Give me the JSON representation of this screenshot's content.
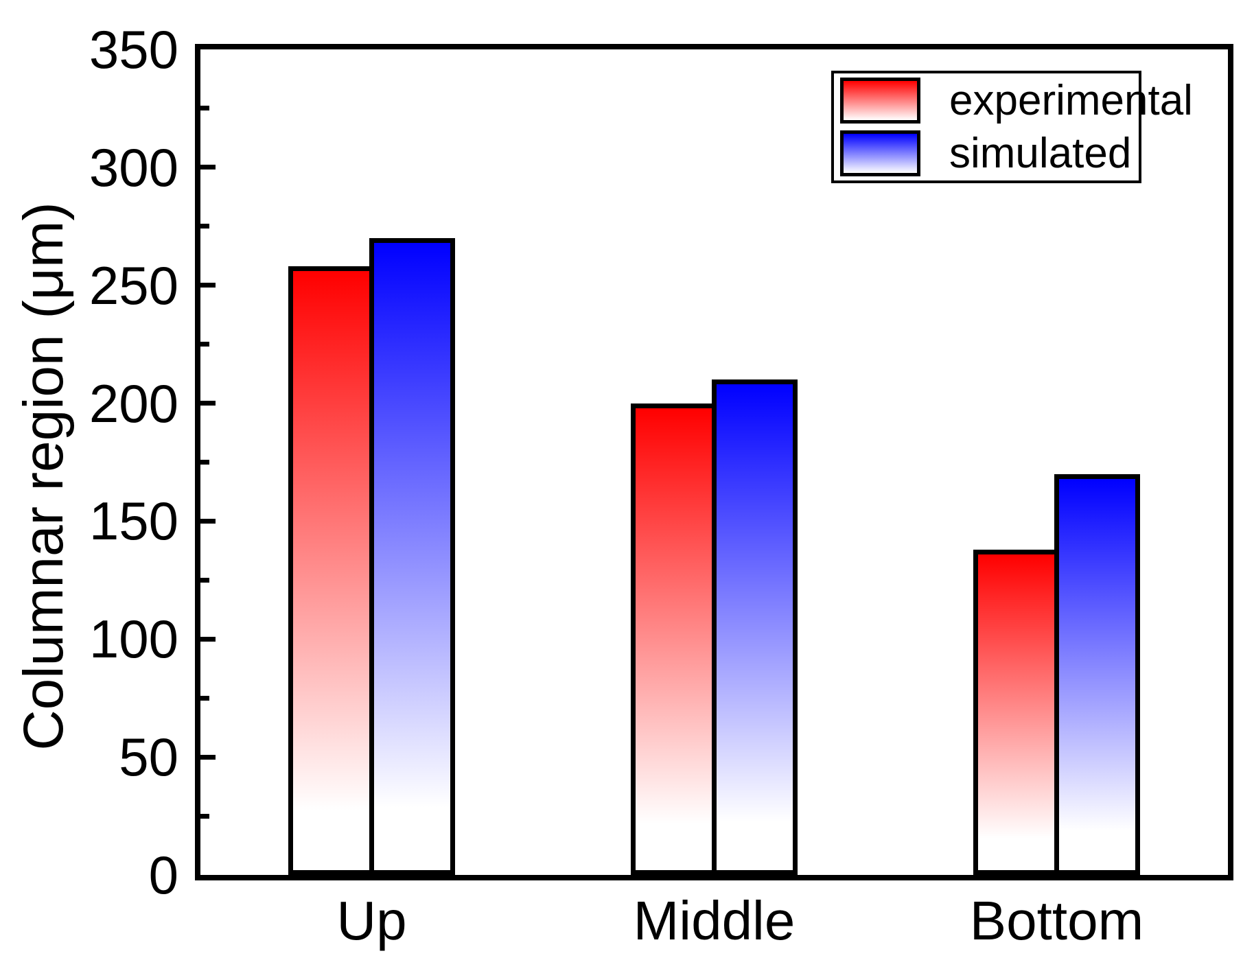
{
  "figure": {
    "background": "#ffffff",
    "text_color": "#000000"
  },
  "chart_data": {
    "type": "bar",
    "title": "",
    "categories": [
      "Up",
      "Middle",
      "Bottom"
    ],
    "series": [
      {
        "name": "experimental",
        "color": "#ff0000",
        "values": [
          258,
          200,
          138
        ]
      },
      {
        "name": "simulated",
        "color": "#0000ff",
        "values": [
          270,
          210,
          170
        ]
      }
    ],
    "xlabel": "",
    "ylabel": "Columnar region (μm)",
    "ylim": [
      0,
      350
    ],
    "y_major_step": 50,
    "y_minor_step": 25,
    "y_tick_labels": [
      "0",
      "50",
      "100",
      "150",
      "200",
      "250",
      "300",
      "350"
    ],
    "grid": "off",
    "bar_fill_style": "vertical-gradient-to-white",
    "gradient_end_color": "#ffffff",
    "legend_position": "top-right",
    "legend_entries": [
      "experimental",
      "simulated"
    ]
  }
}
